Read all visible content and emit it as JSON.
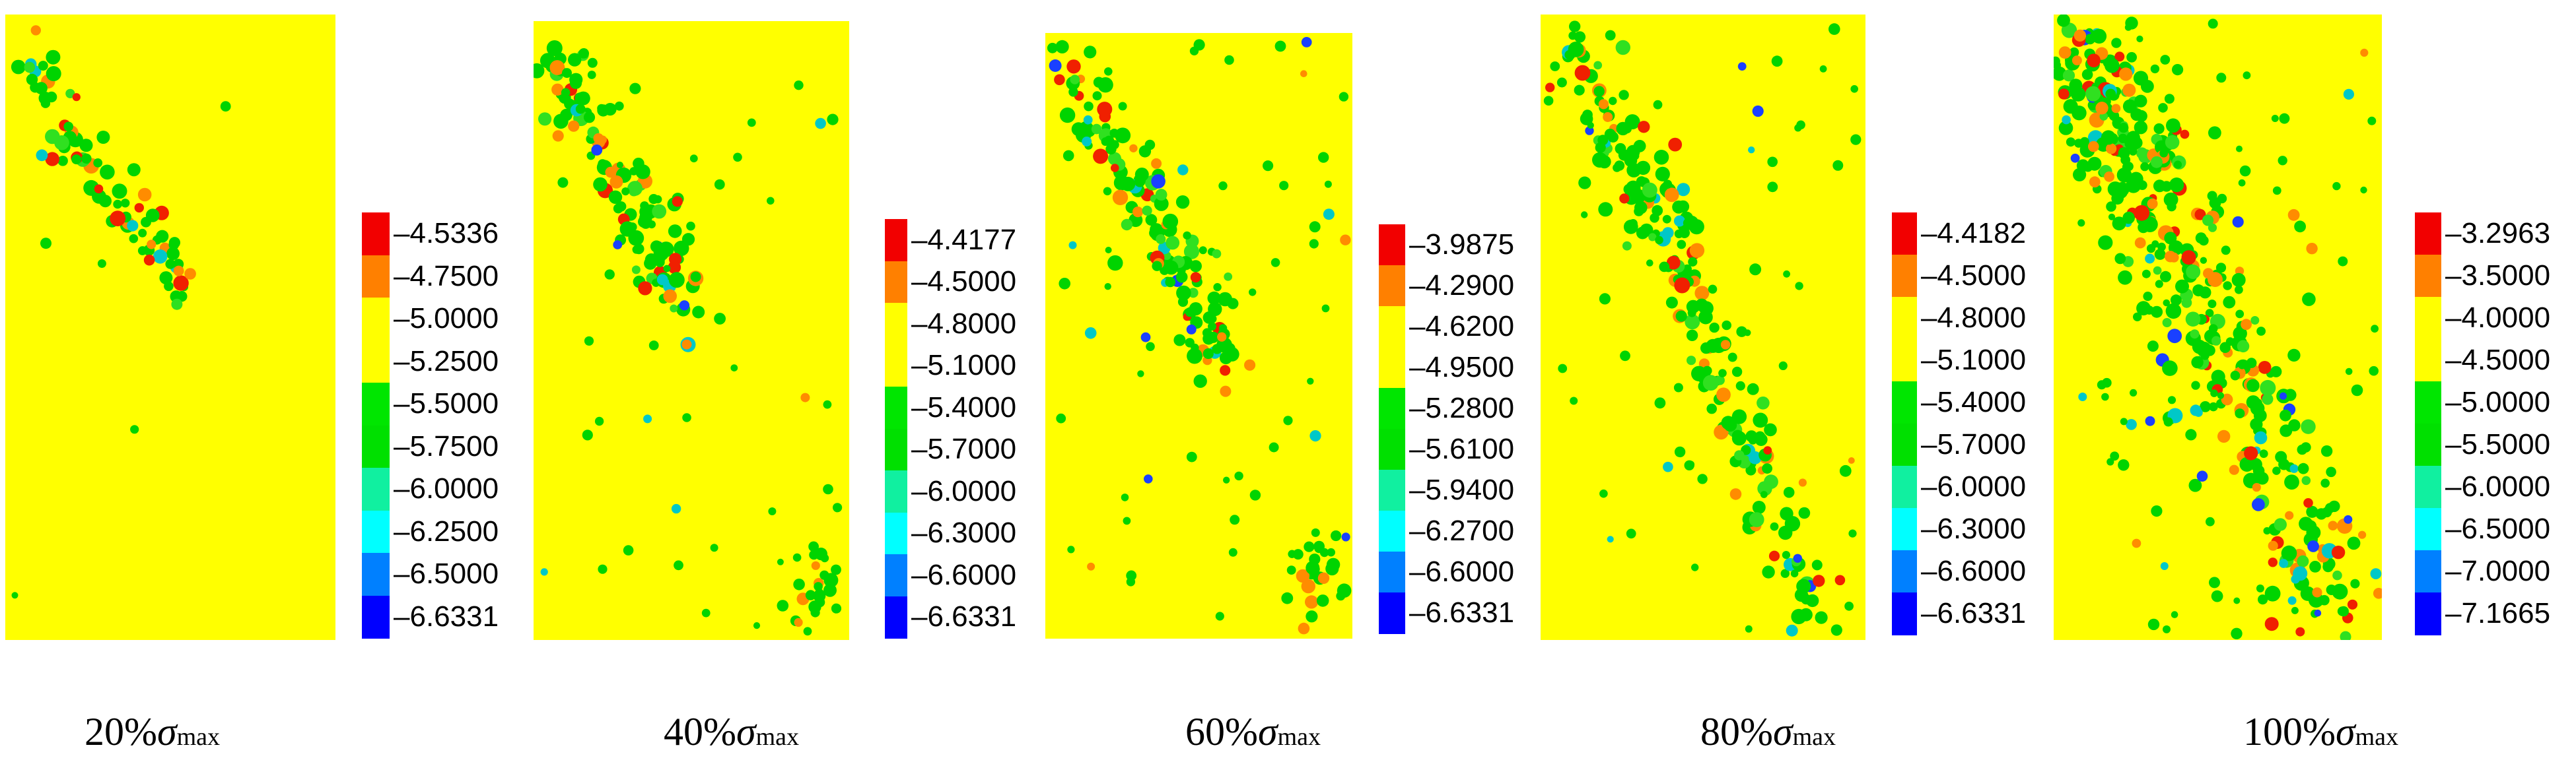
{
  "chart_data": [
    {
      "type": "heatmap",
      "caption": {
        "level": "20%",
        "symbol": "σ",
        "subscript": "max"
      },
      "colorbar_labels": [
        "-4.5336",
        "-4.7500",
        "-5.0000",
        "-5.2500",
        "-5.5000",
        "-5.7500",
        "-6.0000",
        "-6.2500",
        "-6.5000",
        "-6.6331"
      ],
      "colorbar_colors": [
        "#f20000",
        "#ff8000",
        "#ffff00",
        "#ffff00",
        "#00e600",
        "#00e000",
        "#10f0a0",
        "#00ffff",
        "#0080ff",
        "#0000ff"
      ],
      "background_color": "#ffff00",
      "crack_path": [
        [
          0.05,
          0.03
        ],
        [
          0.12,
          0.12
        ],
        [
          0.22,
          0.22
        ],
        [
          0.35,
          0.3
        ],
        [
          0.5,
          0.38
        ],
        [
          0.55,
          0.45
        ]
      ],
      "crack_spread": 0.03,
      "crack_point_count": 80,
      "scatter_point_count": 6
    },
    {
      "type": "heatmap",
      "caption": {
        "level": "40%",
        "symbol": "σ",
        "subscript": "max"
      },
      "colorbar_labels": [
        "-4.4177",
        "-4.5000",
        "-4.8000",
        "-5.1000",
        "-5.4000",
        "-5.7000",
        "-6.0000",
        "-6.3000",
        "-6.6000",
        "-6.6331"
      ],
      "colorbar_colors": [
        "#f20000",
        "#ff8000",
        "#ffff00",
        "#ffff00",
        "#00e600",
        "#00e000",
        "#10f0a0",
        "#00ffff",
        "#0080ff",
        "#0000ff"
      ],
      "background_color": "#ffff00",
      "crack_path": [
        [
          0.03,
          0.03
        ],
        [
          0.12,
          0.12
        ],
        [
          0.22,
          0.22
        ],
        [
          0.35,
          0.3
        ],
        [
          0.42,
          0.38
        ],
        [
          0.45,
          0.48
        ]
      ],
      "crack_spread": 0.05,
      "crack_point_count": 130,
      "scatter_point_count": 35,
      "corner_cluster": [
        0.9,
        0.92
      ]
    },
    {
      "type": "heatmap",
      "caption": {
        "level": "60%",
        "symbol": "σ",
        "subscript": "max"
      },
      "colorbar_labels": [
        "-3.9875",
        "-4.2900",
        "-4.6200",
        "-4.9500",
        "-5.2800",
        "-5.6100",
        "-5.9400",
        "-6.2700",
        "-6.6000",
        "-6.6331"
      ],
      "colorbar_colors": [
        "#f20000",
        "#ff8000",
        "#ffff00",
        "#ffff00",
        "#00e600",
        "#00e000",
        "#10f0a0",
        "#00ffff",
        "#0080ff",
        "#0000ff"
      ],
      "background_color": "#ffff00",
      "crack_path": [
        [
          0.03,
          0.03
        ],
        [
          0.15,
          0.15
        ],
        [
          0.3,
          0.25
        ],
        [
          0.42,
          0.34
        ],
        [
          0.5,
          0.45
        ],
        [
          0.58,
          0.55
        ]
      ],
      "crack_spread": 0.05,
      "crack_point_count": 150,
      "scatter_point_count": 55,
      "corner_cluster": [
        0.88,
        0.9
      ]
    },
    {
      "type": "heatmap",
      "caption": {
        "level": "80%",
        "symbol": "σ",
        "subscript": "max"
      },
      "colorbar_labels": [
        "-4.4182",
        "-4.5000",
        "-4.8000",
        "-5.1000",
        "-5.4000",
        "-5.7000",
        "-6.0000",
        "-6.3000",
        "-6.6000",
        "-6.6331"
      ],
      "colorbar_colors": [
        "#f20000",
        "#ff8000",
        "#ffff00",
        "#ffff00",
        "#00e600",
        "#00e000",
        "#10f0a0",
        "#00ffff",
        "#0080ff",
        "#0000ff"
      ],
      "background_color": "#ffff00",
      "crack_path": [
        [
          0.08,
          0.05
        ],
        [
          0.2,
          0.18
        ],
        [
          0.32,
          0.28
        ],
        [
          0.45,
          0.42
        ],
        [
          0.55,
          0.58
        ],
        [
          0.68,
          0.75
        ],
        [
          0.85,
          0.95
        ]
      ],
      "crack_spread": 0.05,
      "crack_point_count": 220,
      "scatter_point_count": 55
    },
    {
      "type": "heatmap",
      "caption": {
        "level": "100%",
        "symbol": "σ",
        "subscript": "max"
      },
      "colorbar_labels": [
        "-3.2963",
        "-3.5000",
        "-4.0000",
        "-4.5000",
        "-5.0000",
        "-5.5000",
        "-6.0000",
        "-6.5000",
        "-7.0000",
        "-7.1665"
      ],
      "colorbar_colors": [
        "#f20000",
        "#ff8000",
        "#ffff00",
        "#ffff00",
        "#00e600",
        "#00e000",
        "#10f0a0",
        "#00ffff",
        "#0080ff",
        "#0000ff"
      ],
      "background_color": "#ffff00",
      "crack_path": [
        [
          0.05,
          0.03
        ],
        [
          0.15,
          0.15
        ],
        [
          0.3,
          0.28
        ],
        [
          0.42,
          0.42
        ],
        [
          0.55,
          0.58
        ],
        [
          0.7,
          0.75
        ],
        [
          0.85,
          0.95
        ]
      ],
      "crack_spread": 0.09,
      "crack_point_count": 420,
      "scatter_point_count": 90
    }
  ]
}
